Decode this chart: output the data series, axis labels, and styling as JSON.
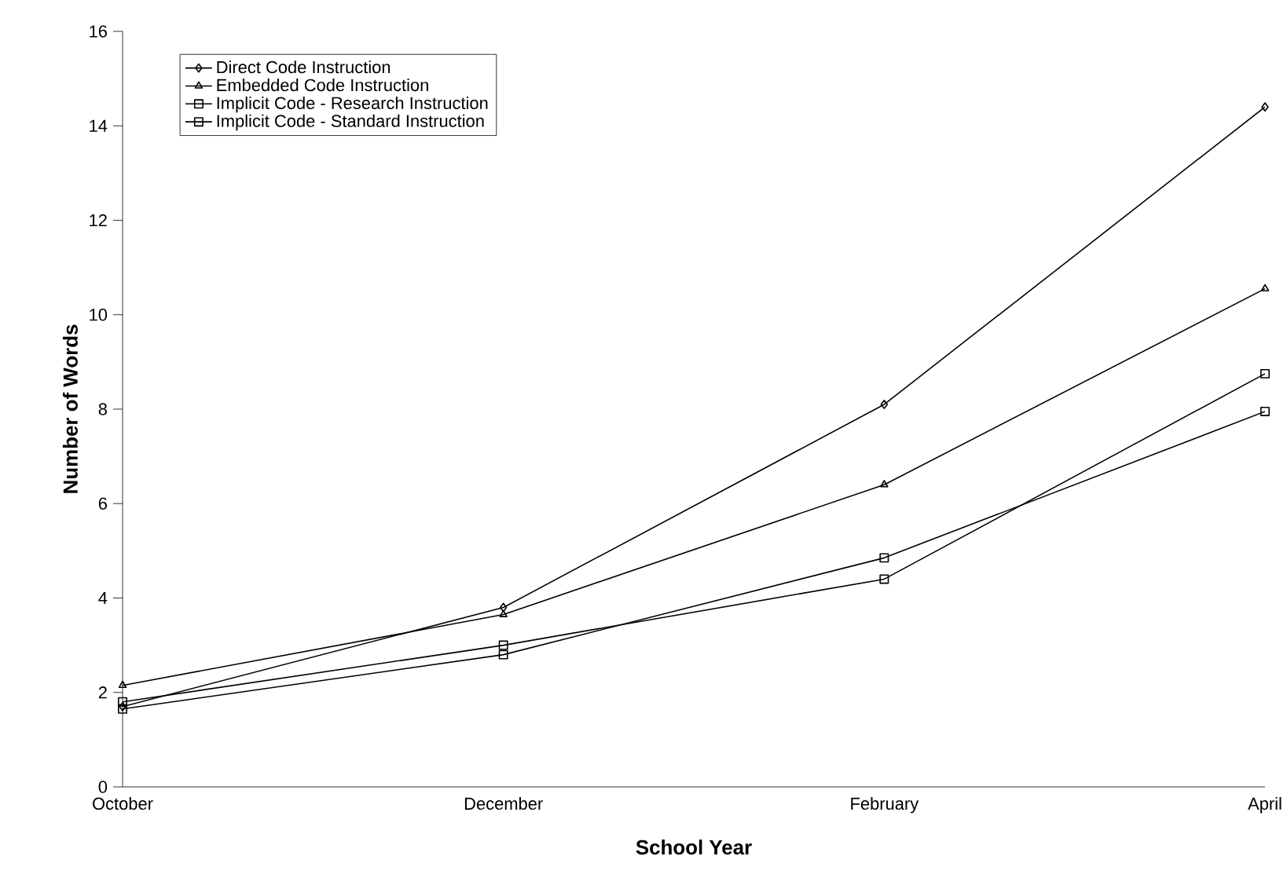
{
  "chart_data": {
    "type": "line",
    "xlabel": "School Year",
    "ylabel": "Number of Words",
    "categories": [
      "October",
      "December",
      "February",
      "April"
    ],
    "series": [
      {
        "name": "Direct Code Instruction",
        "color": "#000000",
        "marker": "diamond",
        "values": [
          1.7,
          3.8,
          8.1,
          14.4
        ]
      },
      {
        "name": "Embedded Code Instruction",
        "color": "#000000",
        "marker": "triangle",
        "values": [
          2.15,
          3.65,
          6.4,
          10.55
        ]
      },
      {
        "name": "Implicit Code - Research Instruction",
        "color": "#000000",
        "marker": "square",
        "values": [
          1.8,
          3.0,
          4.4,
          8.75
        ]
      },
      {
        "name": "Implicit Code - Standard Instruction",
        "color": "#000000",
        "marker": "square",
        "values": [
          1.65,
          2.8,
          4.85,
          7.95
        ]
      }
    ],
    "ylim": [
      0,
      16
    ],
    "yticks": [
      0,
      2,
      4,
      6,
      8,
      10,
      12,
      14,
      16
    ],
    "legend": "top left",
    "grid": false,
    "line_style": "solid"
  }
}
